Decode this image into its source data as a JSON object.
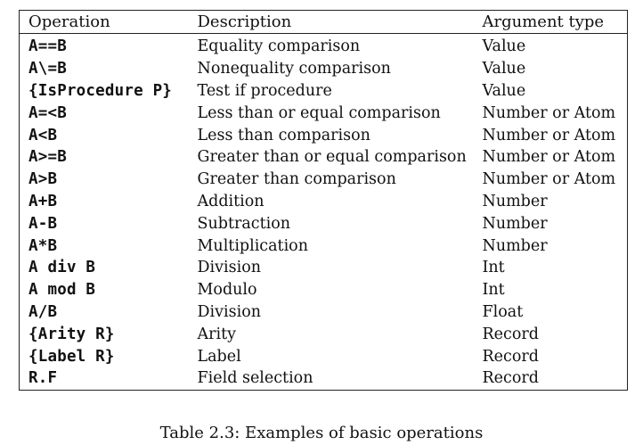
{
  "table": {
    "headers": {
      "operation": "Operation",
      "description": "Description",
      "argument_type": "Argument type"
    },
    "rows": [
      {
        "op": "A==B",
        "desc": "Equality comparison",
        "arg": "Value"
      },
      {
        "op": "A\\=B",
        "desc": "Nonequality comparison",
        "arg": "Value"
      },
      {
        "op": "{IsProcedure P}",
        "desc": "Test if procedure",
        "arg": "Value"
      },
      {
        "op": "A=<B",
        "desc": "Less than or equal comparison",
        "arg": "Number or Atom"
      },
      {
        "op": "A<B",
        "desc": "Less than comparison",
        "arg": "Number or Atom"
      },
      {
        "op": "A>=B",
        "desc": "Greater than or equal comparison",
        "arg": "Number or Atom"
      },
      {
        "op": "A>B",
        "desc": "Greater than comparison",
        "arg": "Number or Atom"
      },
      {
        "op": "A+B",
        "desc": "Addition",
        "arg": "Number"
      },
      {
        "op": "A-B",
        "desc": "Subtraction",
        "arg": "Number"
      },
      {
        "op": "A*B",
        "desc": "Multiplication",
        "arg": "Number"
      },
      {
        "op": "A div B",
        "desc": "Division",
        "arg": "Int"
      },
      {
        "op": "A mod B",
        "desc": "Modulo",
        "arg": "Int"
      },
      {
        "op": "A/B",
        "desc": "Division",
        "arg": "Float"
      },
      {
        "op": "{Arity R}",
        "desc": "Arity",
        "arg": "Record"
      },
      {
        "op": "{Label R}",
        "desc": "Label",
        "arg": "Record"
      },
      {
        "op": "R.F",
        "desc": "Field selection",
        "arg": "Record"
      }
    ]
  },
  "caption": "Table 2.3: Examples of basic operations"
}
